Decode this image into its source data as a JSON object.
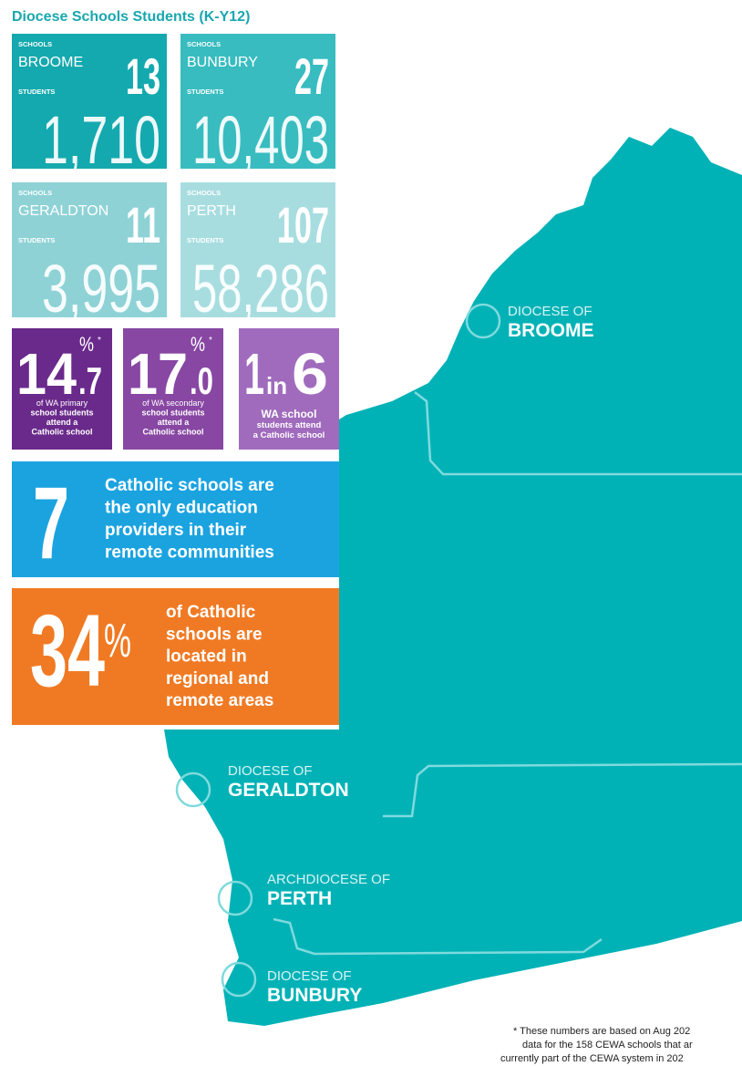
{
  "title": "Diocese Schools Students (K-Y12)",
  "dioceses": [
    {
      "schools_label": "SCHOOLS",
      "name": "BROOME",
      "schools": "13",
      "students_label": "STUDENTS",
      "students": "1,710"
    },
    {
      "schools_label": "SCHOOLS",
      "name": "BUNBURY",
      "schools": "27",
      "students_label": "STUDENTS",
      "students": "10,403"
    },
    {
      "schools_label": "SCHOOLS",
      "name": "GERALDTON",
      "schools": "11",
      "students_label": "STUDENTS",
      "students": "3,995"
    },
    {
      "schools_label": "SCHOOLS",
      "name": "PERTH",
      "schools": "107",
      "students_label": "STUDENTS",
      "students": "58,286"
    }
  ],
  "shares": [
    {
      "whole": "14",
      "fraction": ".7",
      "unit": "%",
      "note": "*",
      "lines": [
        "of WA primary",
        "school students",
        "attend a",
        "Catholic school"
      ]
    },
    {
      "whole": "17",
      "fraction": ".0",
      "unit": "%",
      "note": "*",
      "lines": [
        "of WA secondary",
        "school students",
        "attend a",
        "Catholic school"
      ]
    }
  ],
  "ratio": {
    "first": "1",
    "middle": "in",
    "last": "6",
    "lines": [
      "WA school",
      "students attend",
      "a Catholic school"
    ]
  },
  "remote_providers": {
    "number": "7",
    "lines": [
      "Catholic schools are",
      "the only education",
      "providers in their",
      "remote communities"
    ]
  },
  "regional_share": {
    "number": "34",
    "unit": "%",
    "lines": [
      "of Catholic",
      "schools are",
      "located in",
      "regional and",
      "remote areas"
    ]
  },
  "map_labels": [
    {
      "prefix": "DIOCESE OF",
      "name": "BROOME"
    },
    {
      "prefix": "DIOCESE OF",
      "name": "GERALDTON"
    },
    {
      "prefix": "ARCHDIOCESE OF",
      "name": "PERTH"
    },
    {
      "prefix": "DIOCESE OF",
      "name": "BUNBURY"
    }
  ],
  "footnote": [
    "* These numbers are based on Aug 202",
    "data for the 158 CEWA schools that ar",
    "currently part of the CEWA system in 202"
  ]
}
